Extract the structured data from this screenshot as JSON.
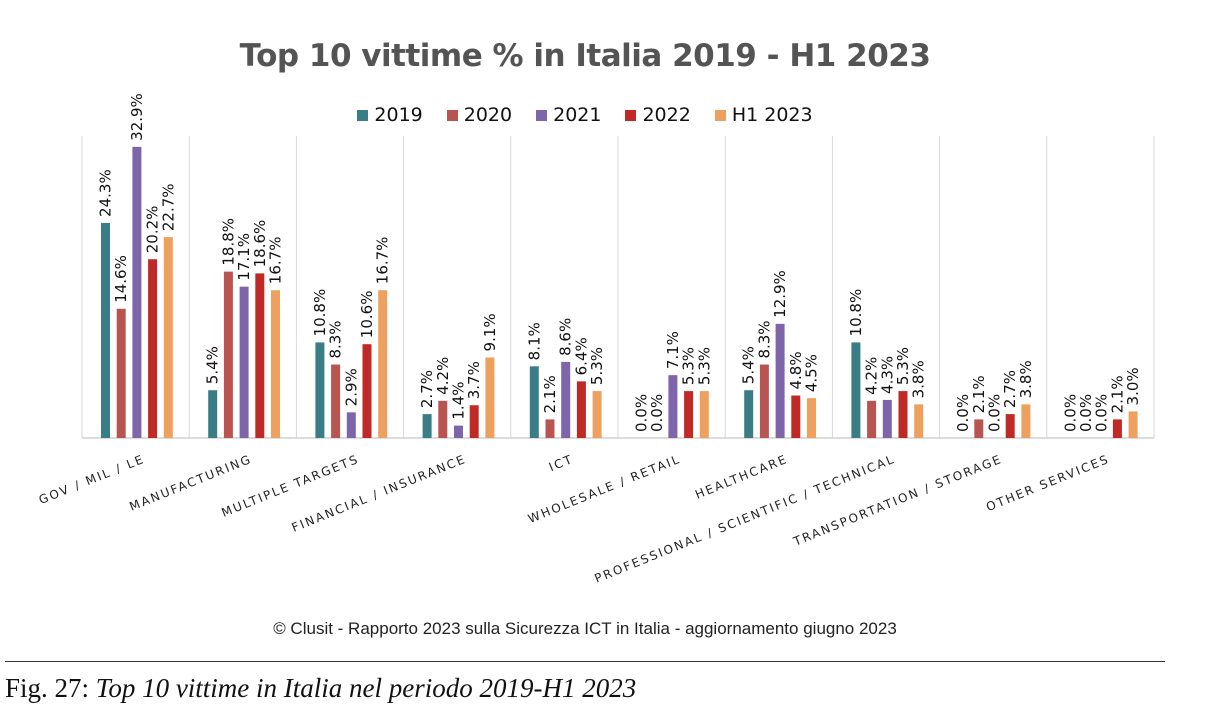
{
  "chart_data": {
    "type": "bar",
    "title": "Top 10 vittime % in Italia 2019 - H1 2023",
    "categories": [
      "GOV / MIL / LE",
      "MANUFACTURING",
      "MULTIPLE TARGETS",
      "FINANCIAL / INSURANCE",
      "ICT",
      "WHOLESALE / RETAIL",
      "HEALTHCARE",
      "PROFESSIONAL / SCIENTIFIC / TECHNICAL",
      "TRANSPORTATION / STORAGE",
      "OTHER SERVICES"
    ],
    "series": [
      {
        "name": "2019",
        "color": "#3a7d87",
        "values": [
          24.3,
          5.4,
          10.8,
          2.7,
          8.1,
          0.0,
          5.4,
          10.8,
          0.0,
          0.0
        ]
      },
      {
        "name": "2020",
        "color": "#b85550",
        "values": [
          14.6,
          18.8,
          8.3,
          4.2,
          2.1,
          0.0,
          8.3,
          4.2,
          2.1,
          0.0
        ]
      },
      {
        "name": "2021",
        "color": "#7e64a8",
        "values": [
          32.9,
          17.1,
          2.9,
          1.4,
          8.6,
          7.1,
          12.9,
          4.3,
          0.0,
          0.0
        ]
      },
      {
        "name": "2022",
        "color": "#bf2a26",
        "values": [
          20.2,
          18.6,
          10.6,
          3.7,
          6.4,
          5.3,
          4.8,
          5.3,
          2.7,
          2.1
        ]
      },
      {
        "name": "H1 2023",
        "color": "#eea05e",
        "values": [
          22.7,
          16.7,
          16.7,
          9.1,
          5.3,
          5.3,
          4.5,
          3.8,
          3.8,
          3.0
        ]
      }
    ],
    "value_suffix": "%",
    "ylim": [
      0,
      33
    ],
    "grid": "vertical separators",
    "legend_position": "top"
  },
  "copyright": "© Clusit - Rapporto 2023 sulla Sicurezza ICT in Italia - aggiornamento giugno 2023",
  "caption": {
    "lead": "Fig. 27:",
    "title": "Top 10 vittime in Italia nel periodo 2019-H1 2023"
  }
}
